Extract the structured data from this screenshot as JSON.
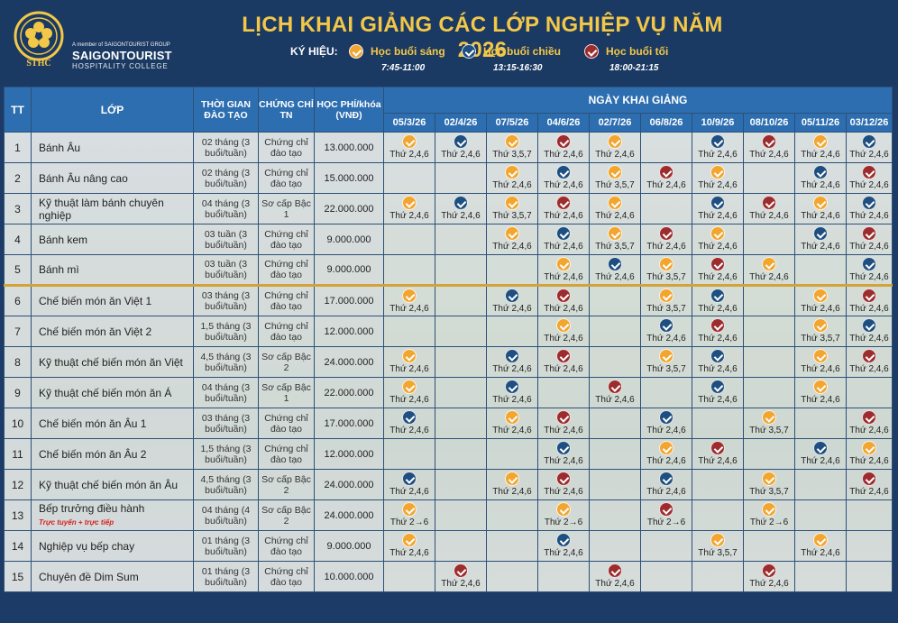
{
  "header": {
    "title": "LỊCH KHAI GIẢNG CÁC LỚP NGHIỆP VỤ NĂM 2026",
    "logo_small": "A member of SAIGONTOURIST GROUP",
    "logo_name": "SAIGONTOURIST",
    "logo_sub": "HOSPITALITY COLLEGE",
    "legend_label": "KÝ HIỆU:",
    "legend": [
      {
        "label": "Học buổi sáng",
        "time": "7:45-11:00",
        "icon": "morning-check-icon",
        "color": "#f2a52f"
      },
      {
        "label": "Học buổi chiều",
        "time": "13:15-16:30",
        "icon": "afternoon-check-icon",
        "color": "#1e4f80"
      },
      {
        "label": "Học buổi tối",
        "time": "18:00-21:15",
        "icon": "evening-check-icon",
        "color": "#9d2c2e"
      }
    ]
  },
  "table": {
    "col_tt": "TT",
    "col_class": "LỚP",
    "col_duration": "THỜI GIAN ĐÀO TẠO",
    "col_cert": "CHỨNG CHỈ TN",
    "col_fee": "HỌC PHÍ/khóa (VNĐ)",
    "col_dates_group": "NGÀY KHAI GIẢNG",
    "dates": [
      "05/3/26",
      "02/4/26",
      "07/5/26",
      "04/6/26",
      "02/7/26",
      "06/8/26",
      "10/9/26",
      "08/10/26",
      "05/11/26",
      "03/12/26"
    ],
    "rows": [
      {
        "tt": "1",
        "name": "Bánh Âu",
        "duration": "02 tháng (3 buổi/tuần)",
        "cert": "Chứng chỉ đào tạo",
        "fee": "13.000.000",
        "cells": [
          {
            "s": "m",
            "t": "Thứ 2,4,6"
          },
          {
            "s": "a",
            "t": "Thứ 2,4,6"
          },
          {
            "s": "m",
            "t": "Thứ 3,5,7"
          },
          {
            "s": "e",
            "t": "Thứ 2,4,6"
          },
          {
            "s": "m",
            "t": "Thứ 2,4,6"
          },
          null,
          {
            "s": "a",
            "t": "Thứ 2,4,6"
          },
          {
            "s": "e",
            "t": "Thứ 2,4,6"
          },
          {
            "s": "m",
            "t": "Thứ 2,4,6"
          },
          {
            "s": "a",
            "t": "Thứ 2,4,6"
          }
        ]
      },
      {
        "tt": "2",
        "name": "Bánh Âu nâng cao",
        "duration": "02 tháng (3 buổi/tuần)",
        "cert": "Chứng chỉ đào tạo",
        "fee": "15.000.000",
        "cells": [
          null,
          null,
          {
            "s": "m",
            "t": "Thứ 2,4,6"
          },
          {
            "s": "a",
            "t": "Thứ 2,4,6"
          },
          {
            "s": "m",
            "t": "Thứ 3,5,7"
          },
          {
            "s": "e",
            "t": "Thứ 2,4,6"
          },
          {
            "s": "m",
            "t": "Thứ 2,4,6"
          },
          null,
          {
            "s": "a",
            "t": "Thứ 2,4,6"
          },
          {
            "s": "e",
            "t": "Thứ 2,4,6"
          }
        ]
      },
      {
        "tt": "3",
        "name": "Kỹ thuật làm bánh chuyên nghiệp",
        "duration": "04 tháng (3 buổi/tuần)",
        "cert": "Sơ cấp Bậc 1",
        "fee": "22.000.000",
        "cells": [
          {
            "s": "m",
            "t": "Thứ 2,4,6"
          },
          {
            "s": "a",
            "t": "Thứ 2,4,6"
          },
          {
            "s": "m",
            "t": "Thứ 3,5,7"
          },
          {
            "s": "e",
            "t": "Thứ 2,4,6"
          },
          {
            "s": "m",
            "t": "Thứ 2,4,6"
          },
          null,
          {
            "s": "a",
            "t": "Thứ 2,4,6"
          },
          {
            "s": "e",
            "t": "Thứ 2,4,6"
          },
          {
            "s": "m",
            "t": "Thứ 2,4,6"
          },
          {
            "s": "a",
            "t": "Thứ 2,4,6"
          }
        ]
      },
      {
        "tt": "4",
        "name": "Bánh kem",
        "duration": "03 tuần (3 buổi/tuần)",
        "cert": "Chứng chỉ đào tạo",
        "fee": "9.000.000",
        "cells": [
          null,
          null,
          {
            "s": "m",
            "t": "Thứ 2,4,6"
          },
          {
            "s": "a",
            "t": "Thứ 2,4,6"
          },
          {
            "s": "m",
            "t": "Thứ 3,5,7"
          },
          {
            "s": "e",
            "t": "Thứ 2,4,6"
          },
          {
            "s": "m",
            "t": "Thứ 2,4,6"
          },
          null,
          {
            "s": "a",
            "t": "Thứ 2,4,6"
          },
          {
            "s": "e",
            "t": "Thứ 2,4,6"
          }
        ]
      },
      {
        "tt": "5",
        "name": "Bánh mì",
        "duration": "03 tuần (3 buổi/tuần)",
        "cert": "Chứng chỉ đào tạo",
        "fee": "9.000.000",
        "cells": [
          null,
          null,
          null,
          {
            "s": "m",
            "t": "Thứ 2,4,6"
          },
          {
            "s": "a",
            "t": "Thứ 2,4,6"
          },
          {
            "s": "m",
            "t": "Thứ 3,5,7"
          },
          {
            "s": "e",
            "t": "Thứ 2,4,6"
          },
          {
            "s": "m",
            "t": "Thứ 2,4,6"
          },
          null,
          {
            "s": "a",
            "t": "Thứ 2,4,6"
          }
        ]
      },
      {
        "tt": "6",
        "name": "Chế biến món ăn Việt 1",
        "duration": "03 tháng (3 buổi/tuần)",
        "cert": "Chứng chỉ đào tạo",
        "fee": "17.000.000",
        "cells": [
          {
            "s": "m",
            "t": "Thứ 2,4,6"
          },
          null,
          {
            "s": "a",
            "t": "Thứ 2,4,6"
          },
          {
            "s": "e",
            "t": "Thứ 2,4,6"
          },
          null,
          {
            "s": "m",
            "t": "Thứ 3,5,7"
          },
          {
            "s": "a",
            "t": "Thứ 2,4,6"
          },
          null,
          {
            "s": "m",
            "t": "Thứ 2,4,6"
          },
          {
            "s": "e",
            "t": "Thứ 2,4,6"
          }
        ]
      },
      {
        "tt": "7",
        "name": "Chế biến món ăn Việt 2",
        "duration": "1,5 tháng (3 buổi/tuần)",
        "cert": "Chứng chỉ đào tạo",
        "fee": "12.000.000",
        "cells": [
          null,
          null,
          null,
          {
            "s": "m",
            "t": "Thứ 2,4,6"
          },
          null,
          {
            "s": "a",
            "t": "Thứ 2,4,6"
          },
          {
            "s": "e",
            "t": "Thứ 2,4,6"
          },
          null,
          {
            "s": "m",
            "t": "Thứ 3,5,7"
          },
          {
            "s": "a",
            "t": "Thứ 2,4,6"
          }
        ]
      },
      {
        "tt": "8",
        "name": "Kỹ thuật chế biến món ăn Việt",
        "duration": "4,5 tháng (3 buổi/tuần)",
        "cert": "Sơ cấp Bậc 2",
        "fee": "24.000.000",
        "cells": [
          {
            "s": "m",
            "t": "Thứ 2,4,6"
          },
          null,
          {
            "s": "a",
            "t": "Thứ 2,4,6"
          },
          {
            "s": "e",
            "t": "Thứ 2,4,6"
          },
          null,
          {
            "s": "m",
            "t": "Thứ 3,5,7"
          },
          {
            "s": "a",
            "t": "Thứ 2,4,6"
          },
          null,
          {
            "s": "m",
            "t": "Thứ 2,4,6"
          },
          {
            "s": "e",
            "t": "Thứ 2,4,6"
          }
        ]
      },
      {
        "tt": "9",
        "name": "Kỹ thuật chế biến món ăn Á",
        "duration": "04 tháng (3 buổi/tuần)",
        "cert": "Sơ cấp Bậc 1",
        "fee": "22.000.000",
        "cells": [
          {
            "s": "m",
            "t": "Thứ 2,4,6"
          },
          null,
          {
            "s": "a",
            "t": "Thứ 2,4,6"
          },
          null,
          {
            "s": "e",
            "t": "Thứ 2,4,6"
          },
          null,
          {
            "s": "a",
            "t": "Thứ 2,4,6"
          },
          null,
          {
            "s": "m",
            "t": "Thứ 2,4,6"
          },
          null
        ]
      },
      {
        "tt": "10",
        "name": "Chế biến món ăn Âu 1",
        "duration": "03 tháng (3 buổi/tuần)",
        "cert": "Chứng chỉ đào tạo",
        "fee": "17.000.000",
        "cells": [
          {
            "s": "a",
            "t": "Thứ 2,4,6"
          },
          null,
          {
            "s": "m",
            "t": "Thứ 2,4,6"
          },
          {
            "s": "e",
            "t": "Thứ 2,4,6"
          },
          null,
          {
            "s": "a",
            "t": "Thứ 2,4,6"
          },
          null,
          {
            "s": "m",
            "t": "Thứ 3,5,7"
          },
          null,
          {
            "s": "e",
            "t": "Thứ 2,4,6"
          }
        ]
      },
      {
        "tt": "11",
        "name": "Chế biến món ăn Âu 2",
        "duration": "1,5 tháng (3 buổi/tuần)",
        "cert": "Chứng chỉ đào tạo",
        "fee": "12.000.000",
        "cells": [
          null,
          null,
          null,
          {
            "s": "a",
            "t": "Thứ 2,4,6"
          },
          null,
          {
            "s": "m",
            "t": "Thứ 2,4,6"
          },
          {
            "s": "e",
            "t": "Thứ 2,4,6"
          },
          null,
          {
            "s": "a",
            "t": "Thứ 2,4,6"
          },
          {
            "s": "m",
            "t": "Thứ 2,4,6"
          }
        ]
      },
      {
        "tt": "12",
        "name": "Kỹ thuật chế biến món ăn Âu",
        "duration": "4,5 tháng (3 buổi/tuần)",
        "cert": "Sơ cấp Bậc 2",
        "fee": "24.000.000",
        "cells": [
          {
            "s": "a",
            "t": "Thứ 2,4,6"
          },
          null,
          {
            "s": "m",
            "t": "Thứ 2,4,6"
          },
          {
            "s": "e",
            "t": "Thứ 2,4,6"
          },
          null,
          {
            "s": "a",
            "t": "Thứ 2,4,6"
          },
          null,
          {
            "s": "m",
            "t": "Thứ 3,5,7"
          },
          null,
          {
            "s": "e",
            "t": "Thứ 2,4,6"
          }
        ]
      },
      {
        "tt": "13",
        "name": "Bếp trưởng điều hành",
        "note": "Trực tuyến + trực tiếp",
        "duration": "04 tháng (4 buổi/tuần)",
        "cert": "Sơ cấp Bậc 2",
        "fee": "24.000.000",
        "cells": [
          {
            "s": "m",
            "t": "Thứ 2→6"
          },
          null,
          null,
          {
            "s": "m",
            "t": "Thứ 2→6"
          },
          null,
          {
            "s": "e",
            "t": "Thứ 2→6"
          },
          null,
          {
            "s": "m",
            "t": "Thứ 2→6"
          },
          null,
          null
        ]
      },
      {
        "tt": "14",
        "name": "Nghiệp vụ bếp chay",
        "duration": "01 tháng (3 buổi/tuần)",
        "cert": "Chứng chỉ đào tạo",
        "fee": "9.000.000",
        "cells": [
          {
            "s": "m",
            "t": "Thứ 2,4,6"
          },
          null,
          null,
          {
            "s": "a",
            "t": "Thứ 2,4,6"
          },
          null,
          null,
          {
            "s": "m",
            "t": "Thứ 3,5,7"
          },
          null,
          {
            "s": "m",
            "t": "Thứ 2,4,6"
          },
          null
        ]
      },
      {
        "tt": "15",
        "name": "Chuyên đề Dim Sum",
        "duration": "01 tháng (3 buổi/tuần)",
        "cert": "Chứng chỉ đào tạo",
        "fee": "10.000.000",
        "cells": [
          null,
          {
            "s": "e",
            "t": "Thứ 2,4,6"
          },
          null,
          null,
          {
            "s": "e",
            "t": "Thứ 2,4,6"
          },
          null,
          null,
          {
            "s": "e",
            "t": "Thứ 2,4,6"
          },
          null,
          null
        ]
      }
    ]
  }
}
